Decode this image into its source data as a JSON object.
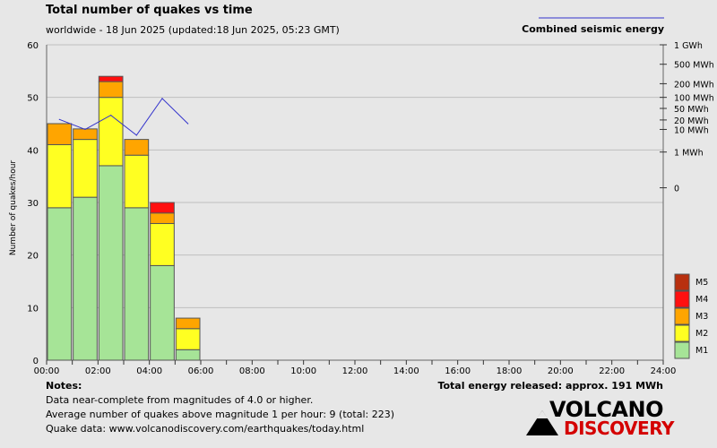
{
  "chart_data": {
    "type": "bar",
    "title": "Total number of quakes vs time",
    "subtitle": "worldwide - 18 Jun 2025 (updated:18 Jun 2025, 05:23 GMT)",
    "ylabel": "Number of quakes/hour",
    "xlabel": "",
    "ylim": [
      0,
      60
    ],
    "y_ticks": [
      0,
      10,
      20,
      30,
      40,
      50,
      60
    ],
    "x_ticks": [
      "00:00",
      "02:00",
      "04:00",
      "06:00",
      "08:00",
      "10:00",
      "12:00",
      "14:00",
      "16:00",
      "18:00",
      "20:00",
      "22:00",
      "24:00"
    ],
    "x_range_hours": [
      0,
      24
    ],
    "grid": true,
    "bars": [
      {
        "hour": 0,
        "M1": 29,
        "M2": 12,
        "M3": 4,
        "M4": 0,
        "M5": 0
      },
      {
        "hour": 1,
        "M1": 31,
        "M2": 11,
        "M3": 2,
        "M4": 0,
        "M5": 0
      },
      {
        "hour": 2,
        "M1": 37,
        "M2": 13,
        "M3": 3,
        "M4": 1,
        "M5": 0
      },
      {
        "hour": 3,
        "M1": 29,
        "M2": 10,
        "M3": 3,
        "M4": 0,
        "M5": 0
      },
      {
        "hour": 4,
        "M1": 18,
        "M2": 8,
        "M3": 2,
        "M4": 2,
        "M5": 0
      },
      {
        "hour": 5,
        "M1": 2,
        "M2": 4,
        "M3": 2,
        "M4": 0,
        "M5": 0
      }
    ],
    "magnitude_legend": [
      {
        "label": "M5",
        "color": "#b8300f"
      },
      {
        "label": "M4",
        "color": "#ff1010"
      },
      {
        "label": "M3",
        "color": "#ffa500"
      },
      {
        "label": "M2",
        "color": "#ffff22"
      },
      {
        "label": "M1",
        "color": "#a6e497"
      }
    ],
    "energy_series": {
      "name": "Combined seismic energy",
      "color": "#3333cc",
      "points": [
        {
          "hour": 0.5,
          "y_left": 45.8
        },
        {
          "hour": 1.5,
          "y_left": 43.9
        },
        {
          "hour": 2.5,
          "y_left": 46.6
        },
        {
          "hour": 3.5,
          "y_left": 42.8
        },
        {
          "hour": 4.5,
          "y_left": 49.8
        },
        {
          "hour": 5.5,
          "y_left": 45.0
        }
      ]
    },
    "energy_axis_ticks": [
      {
        "label": "1 GWh",
        "y_left": 60
      },
      {
        "label": "500 MWh",
        "y_left": 56.3
      },
      {
        "label": "200 MWh",
        "y_left": 52.6
      },
      {
        "label": "100 MWh",
        "y_left": 50.0
      },
      {
        "label": "50 MWh",
        "y_left": 47.9
      },
      {
        "label": "20 MWh",
        "y_left": 45.7
      },
      {
        "label": "10 MWh",
        "y_left": 43.9
      },
      {
        "label": "1 MWh",
        "y_left": 39.6
      },
      {
        "label": "0",
        "y_left": 32.8
      }
    ]
  },
  "legend_energy_label": "Combined seismic energy",
  "notes": {
    "heading": "Notes:",
    "lines": [
      "Data near-complete from magnitudes of 4.0 or higher.",
      "Average number of quakes above magnitude 1 per hour: 9 (total: 223)",
      "Quake data: www.volcanodiscovery.com/earthquakes/today.html"
    ]
  },
  "total_energy": "Total energy released: approx. 191 MWh",
  "logo": {
    "line1": "VOLCANO",
    "line2": "DISCOVERY"
  }
}
